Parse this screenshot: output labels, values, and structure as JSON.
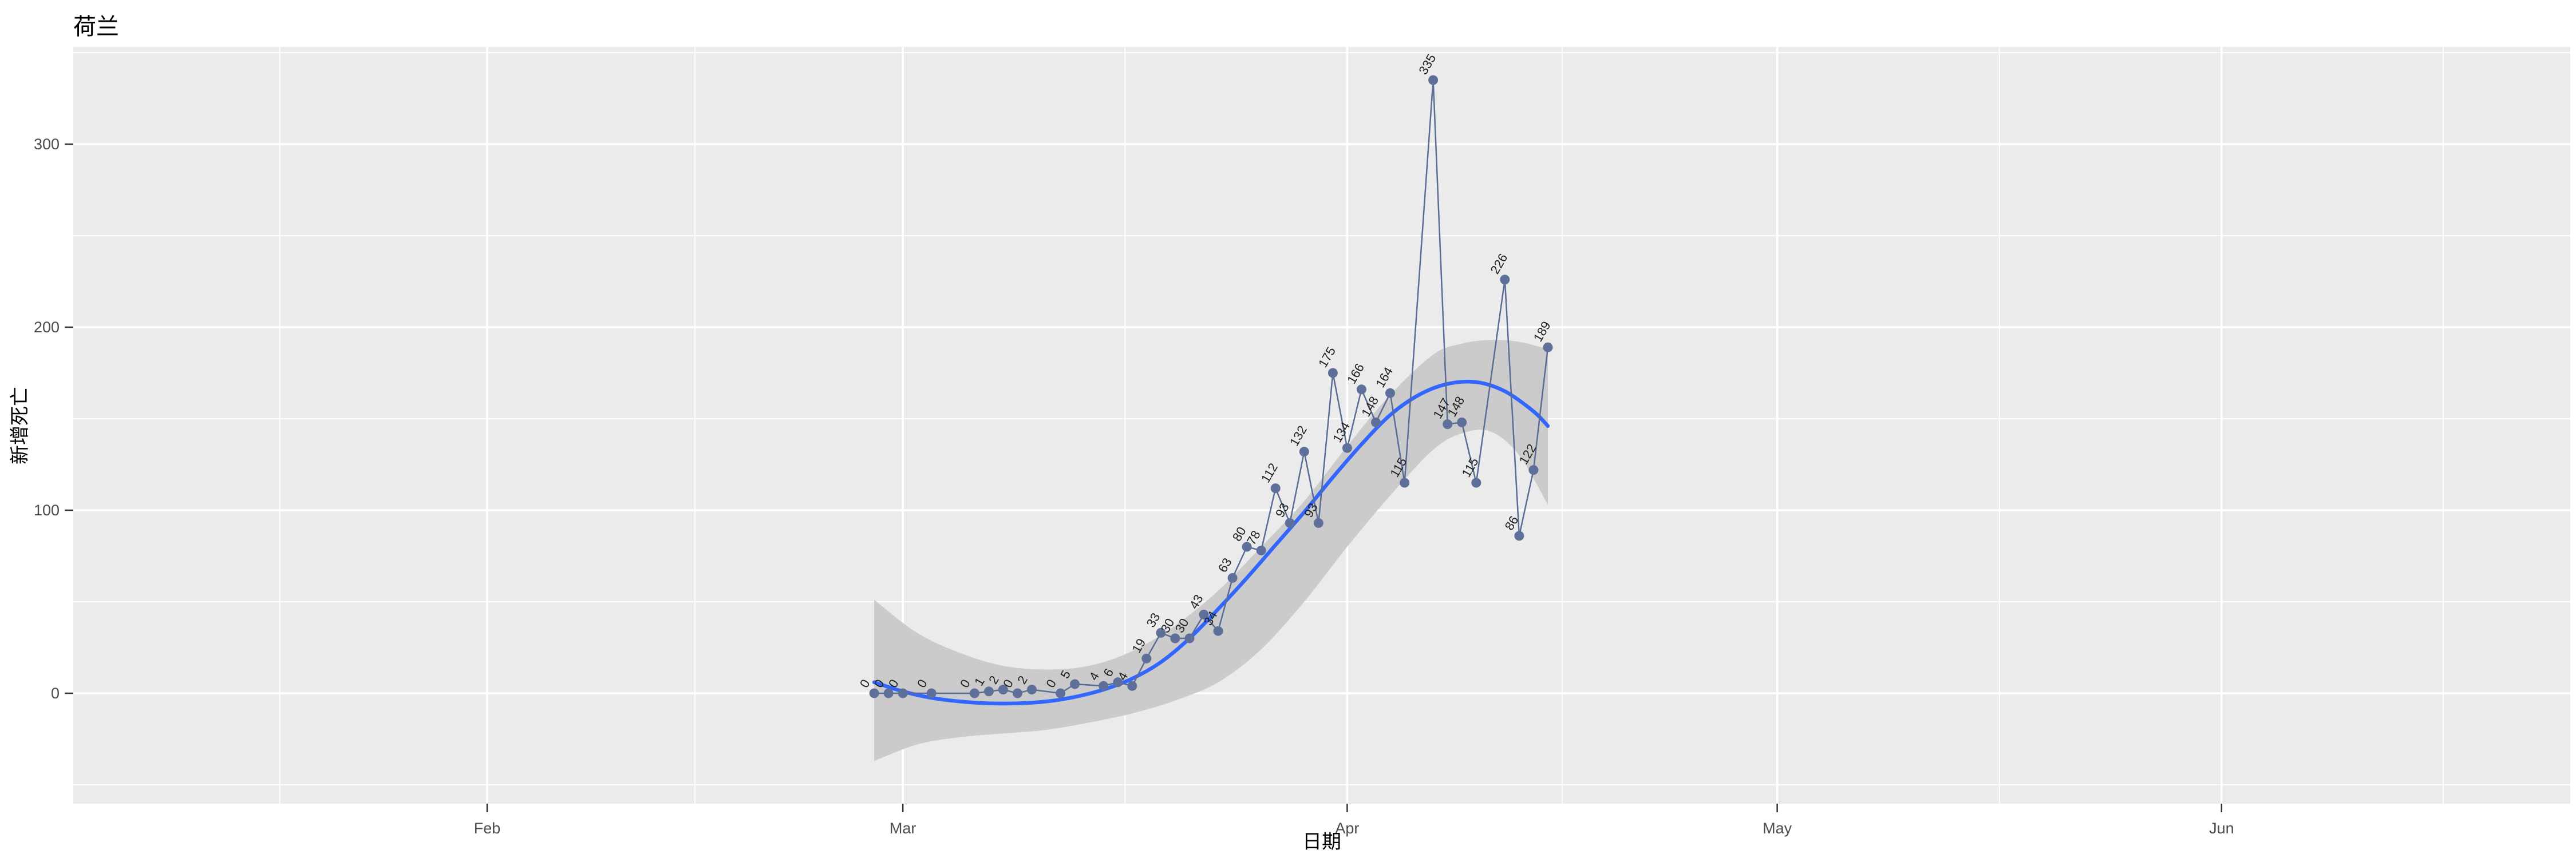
{
  "title": "荷兰",
  "axes": {
    "x": {
      "label": "日期",
      "tick_labels": [
        "Feb",
        "Mar",
        "Apr",
        "May",
        "Jun"
      ],
      "tick_dates": [
        "2020-02-01",
        "2020-03-01",
        "2020-04-01",
        "2020-05-01",
        "2020-06-01"
      ]
    },
    "y": {
      "label": "新增死亡",
      "tick_values": [
        0,
        100,
        200,
        300
      ]
    }
  },
  "colors": {
    "panel_bg": "#EBEBEB",
    "grid_major": "#FFFFFF",
    "grid_minor": "#FFFFFF",
    "point": "#5E7099",
    "series_line": "#5A6C94",
    "smooth_line": "#3366FF",
    "ci_band": "#CBCBCB",
    "label_text": "#1F1F1F",
    "tick_text": "#4D4D4D",
    "tick_mark": "#333333",
    "title_text": "#000000"
  },
  "chart_data": {
    "type": "line",
    "title": "荷兰",
    "xlabel": "日期",
    "ylabel": "新增死亡",
    "ylim": [
      -60,
      353
    ],
    "grid": true,
    "legend": false,
    "point_labels_shown": true,
    "point_label_angle_deg": 60,
    "series": [
      {
        "name": "daily-new-deaths",
        "type": "scatter-line-labeled",
        "points": [
          {
            "date": "2020-02-28",
            "value": 0
          },
          {
            "date": "2020-02-29",
            "value": 0
          },
          {
            "date": "2020-03-01",
            "value": 0
          },
          {
            "date": "2020-03-03",
            "value": 0
          },
          {
            "date": "2020-03-06",
            "value": 0
          },
          {
            "date": "2020-03-07",
            "value": 1
          },
          {
            "date": "2020-03-08",
            "value": 2
          },
          {
            "date": "2020-03-09",
            "value": 0
          },
          {
            "date": "2020-03-10",
            "value": 2
          },
          {
            "date": "2020-03-12",
            "value": 0
          },
          {
            "date": "2020-03-13",
            "value": 5
          },
          {
            "date": "2020-03-15",
            "value": 4
          },
          {
            "date": "2020-03-16",
            "value": 6
          },
          {
            "date": "2020-03-17",
            "value": 4
          },
          {
            "date": "2020-03-18",
            "value": 19
          },
          {
            "date": "2020-03-19",
            "value": 33
          },
          {
            "date": "2020-03-20",
            "value": 30
          },
          {
            "date": "2020-03-21",
            "value": 30
          },
          {
            "date": "2020-03-22",
            "value": 43
          },
          {
            "date": "2020-03-23",
            "value": 34
          },
          {
            "date": "2020-03-24",
            "value": 63
          },
          {
            "date": "2020-03-25",
            "value": 80
          },
          {
            "date": "2020-03-26",
            "value": 78
          },
          {
            "date": "2020-03-27",
            "value": 112
          },
          {
            "date": "2020-03-28",
            "value": 93
          },
          {
            "date": "2020-03-29",
            "value": 132
          },
          {
            "date": "2020-03-30",
            "value": 93
          },
          {
            "date": "2020-03-31",
            "value": 175
          },
          {
            "date": "2020-04-01",
            "value": 134
          },
          {
            "date": "2020-04-02",
            "value": 166
          },
          {
            "date": "2020-04-03",
            "value": 148
          },
          {
            "date": "2020-04-04",
            "value": 164
          },
          {
            "date": "2020-04-05",
            "value": 115
          },
          {
            "date": "2020-04-07",
            "value": 335
          },
          {
            "date": "2020-04-08",
            "value": 147
          },
          {
            "date": "2020-04-09",
            "value": 148
          },
          {
            "date": "2020-04-10",
            "value": 115
          },
          {
            "date": "2020-04-12",
            "value": 226
          },
          {
            "date": "2020-04-13",
            "value": 86
          },
          {
            "date": "2020-04-14",
            "value": 122
          },
          {
            "date": "2020-04-15",
            "value": 189
          }
        ]
      },
      {
        "name": "loess-smooth",
        "type": "smooth-line",
        "points": [
          {
            "date": "2020-02-28",
            "value": 6
          },
          {
            "date": "2020-03-01",
            "value": 1
          },
          {
            "date": "2020-03-03",
            "value": -2.5
          },
          {
            "date": "2020-03-05",
            "value": -4.5
          },
          {
            "date": "2020-03-07",
            "value": -5.5
          },
          {
            "date": "2020-03-09",
            "value": -5.5
          },
          {
            "date": "2020-03-11",
            "value": -4.5
          },
          {
            "date": "2020-03-13",
            "value": -2
          },
          {
            "date": "2020-03-15",
            "value": 2
          },
          {
            "date": "2020-03-17",
            "value": 8
          },
          {
            "date": "2020-03-19",
            "value": 17
          },
          {
            "date": "2020-03-21",
            "value": 30
          },
          {
            "date": "2020-03-23",
            "value": 46
          },
          {
            "date": "2020-03-25",
            "value": 63
          },
          {
            "date": "2020-03-27",
            "value": 81
          },
          {
            "date": "2020-03-29",
            "value": 99
          },
          {
            "date": "2020-03-31",
            "value": 118
          },
          {
            "date": "2020-04-02",
            "value": 136
          },
          {
            "date": "2020-04-04",
            "value": 152
          },
          {
            "date": "2020-04-06",
            "value": 163
          },
          {
            "date": "2020-04-08",
            "value": 169
          },
          {
            "date": "2020-04-10",
            "value": 170
          },
          {
            "date": "2020-04-12",
            "value": 165
          },
          {
            "date": "2020-04-14",
            "value": 154
          },
          {
            "date": "2020-04-15",
            "value": 146
          }
        ]
      },
      {
        "name": "confidence-band",
        "type": "band",
        "points": [
          {
            "date": "2020-02-28",
            "lo": -37,
            "hi": 51
          },
          {
            "date": "2020-03-02",
            "lo": -28,
            "hi": 33
          },
          {
            "date": "2020-03-05",
            "lo": -24,
            "hi": 22
          },
          {
            "date": "2020-03-08",
            "lo": -22,
            "hi": 15
          },
          {
            "date": "2020-03-11",
            "lo": -20,
            "hi": 13
          },
          {
            "date": "2020-03-14",
            "lo": -16,
            "hi": 15
          },
          {
            "date": "2020-03-17",
            "lo": -11,
            "hi": 23
          },
          {
            "date": "2020-03-20",
            "lo": -4,
            "hi": 37
          },
          {
            "date": "2020-03-23",
            "lo": 6,
            "hi": 56
          },
          {
            "date": "2020-03-26",
            "lo": 24,
            "hi": 80
          },
          {
            "date": "2020-03-29",
            "lo": 50,
            "hi": 105
          },
          {
            "date": "2020-04-01",
            "lo": 80,
            "hi": 135
          },
          {
            "date": "2020-04-04",
            "lo": 108,
            "hi": 163
          },
          {
            "date": "2020-04-07",
            "lo": 133,
            "hi": 185
          },
          {
            "date": "2020-04-09",
            "lo": 142,
            "hi": 191
          },
          {
            "date": "2020-04-11",
            "lo": 143,
            "hi": 193
          },
          {
            "date": "2020-04-13",
            "lo": 130,
            "hi": 192
          },
          {
            "date": "2020-04-15",
            "lo": 103,
            "hi": 188
          }
        ]
      }
    ]
  }
}
